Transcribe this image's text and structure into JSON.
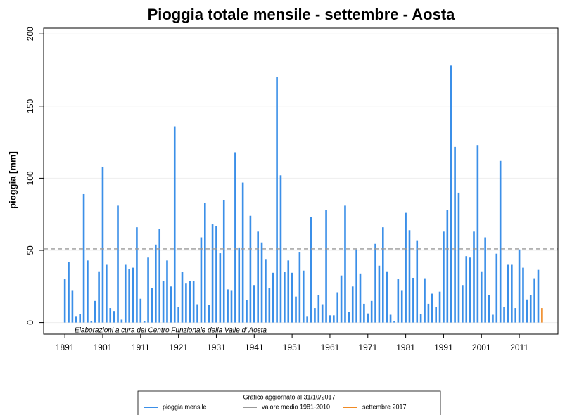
{
  "chart_data": {
    "type": "bar",
    "title": "Pioggia totale mensile -  settembre - Aosta",
    "ylabel": "pioggia [mm]",
    "annotation": "Elaborazioni a cura del Centro Funzionale della Valle d' Aosta",
    "legend_title": "Grafico aggiornato al 31/10/2017",
    "grid": true,
    "xlim": [
      1885.4,
      2021.2
    ],
    "ylim": [
      -8,
      204
    ],
    "xticks": [
      1891,
      1901,
      1911,
      1921,
      1931,
      1941,
      1951,
      1961,
      1971,
      1981,
      1991,
      2001,
      2011
    ],
    "yticks": [
      0,
      50,
      100,
      150,
      200
    ],
    "series": [
      {
        "name": "pioggia mensile",
        "color": "#3b8fe8",
        "kind": "bar",
        "x": [
          1891,
          1892,
          1893,
          1894,
          1895,
          1896,
          1897,
          1898,
          1899,
          1900,
          1901,
          1902,
          1903,
          1904,
          1905,
          1906,
          1907,
          1908,
          1909,
          1910,
          1911,
          1912,
          1913,
          1914,
          1915,
          1916,
          1917,
          1918,
          1919,
          1920,
          1921,
          1922,
          1923,
          1924,
          1925,
          1926,
          1927,
          1928,
          1929,
          1930,
          1931,
          1932,
          1933,
          1934,
          1935,
          1936,
          1937,
          1938,
          1939,
          1940,
          1941,
          1942,
          1943,
          1944,
          1945,
          1946,
          1947,
          1948,
          1949,
          1950,
          1951,
          1952,
          1953,
          1954,
          1955,
          1956,
          1957,
          1958,
          1959,
          1960,
          1961,
          1962,
          1963,
          1964,
          1965,
          1966,
          1967,
          1968,
          1969,
          1970,
          1971,
          1972,
          1973,
          1974,
          1975,
          1976,
          1977,
          1978,
          1979,
          1980,
          1981,
          1982,
          1983,
          1984,
          1985,
          1986,
          1987,
          1988,
          1989,
          1990,
          1991,
          1992,
          1993,
          1994,
          1995,
          1996,
          1997,
          1998,
          1999,
          2000,
          2001,
          2002,
          2003,
          2004,
          2005,
          2006,
          2007,
          2008,
          2009,
          2010,
          2011,
          2012,
          2013,
          2014,
          2015,
          2016
        ],
        "values": [
          30,
          42,
          22,
          4.5,
          6,
          89,
          43,
          1,
          15,
          35.5,
          108,
          40,
          10,
          8,
          81,
          2,
          40,
          37,
          38,
          66,
          16.5,
          1,
          45,
          24,
          54,
          65,
          28.7,
          43,
          25,
          136,
          11,
          35,
          27,
          29,
          28.7,
          12.7,
          59,
          83,
          12,
          68,
          67,
          48,
          85,
          23,
          22,
          118,
          52,
          97,
          15.5,
          74,
          26,
          63,
          55.5,
          44,
          24,
          34.5,
          170,
          102,
          35,
          43,
          34.5,
          18,
          49,
          36,
          4.5,
          73,
          10,
          19,
          12.7,
          78,
          5,
          5,
          21,
          32.6,
          81,
          7.3,
          25,
          50.6,
          34,
          13,
          6.3,
          15,
          54.5,
          39.4,
          66,
          35.5,
          5.4,
          1,
          30,
          22,
          76,
          64,
          31,
          57,
          6,
          30.7,
          13,
          20,
          10.7,
          21.4,
          63,
          78,
          178,
          121.7,
          90,
          26,
          46,
          45,
          63,
          123,
          35.5,
          59,
          19,
          5.4,
          47.7,
          112,
          11,
          40,
          40,
          10,
          50.6,
          38,
          16,
          19,
          30.7,
          36.5
        ]
      },
      {
        "name": "valore medio 1981-2010",
        "color": "#999999",
        "kind": "hline",
        "values": [
          51
        ]
      },
      {
        "name": "settembre 2017",
        "color": "#f08a24",
        "kind": "bar",
        "x": [
          2017
        ],
        "values": [
          10
        ]
      }
    ]
  }
}
